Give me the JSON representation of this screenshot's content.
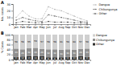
{
  "chart_data": [
    {
      "type": "line",
      "title": "A",
      "ylabel": "No. cases",
      "categories": [
        "Jan",
        "Feb",
        "Mar",
        "Apr",
        "May",
        "Jun",
        "Jul",
        "Aug",
        "Sep",
        "Oct",
        "Nov",
        "Dec"
      ],
      "series": [
        {
          "name": "Dengue",
          "color": "#aaaaaa",
          "line_style": "dashed",
          "marker": "square",
          "values": [
            10,
            20,
            12,
            8,
            8,
            26,
            22,
            20,
            16,
            12,
            8,
            5
          ]
        },
        {
          "name": "Chikungunya",
          "color": "#555555",
          "line_style": "dashed",
          "marker": "square",
          "values": [
            6,
            10,
            7,
            5,
            4,
            14,
            12,
            10,
            8,
            6,
            4,
            3
          ]
        },
        {
          "name": "Other",
          "color": "#000000",
          "line_style": "dotted",
          "marker": "square",
          "values": [
            2,
            4,
            3,
            2,
            2,
            4,
            3,
            3,
            3,
            2,
            2,
            1
          ]
        }
      ],
      "ylim": [
        0,
        30
      ],
      "yticks": [
        0,
        10,
        20,
        30
      ],
      "legend": "right"
    },
    {
      "type": "bar",
      "title": "B",
      "ylabel": "% Cases",
      "stacked": true,
      "data_labels": true,
      "categories": [
        "Jan",
        "Feb",
        "Mar",
        "Apr",
        "May",
        "Jun",
        "Jul",
        "Aug",
        "Sep",
        "Oct",
        "Nov",
        "Dec"
      ],
      "series": [
        {
          "name": "Other",
          "color": "#303030",
          "values": [
            11,
            12,
            13,
            14,
            14,
            9,
            9,
            9,
            11,
            10,
            14,
            11
          ]
        },
        {
          "name": "Chikungunya",
          "color": "#909090",
          "values": [
            33,
            29,
            32,
            33,
            29,
            32,
            32,
            30,
            30,
            30,
            29,
            33
          ]
        },
        {
          "name": "Dengue",
          "color": "#d0d0d0",
          "values": [
            56,
            59,
            55,
            53,
            57,
            59,
            59,
            61,
            59,
            60,
            57,
            56
          ]
        }
      ],
      "ylim": [
        0,
        100
      ],
      "yticks": [
        0,
        20,
        40,
        60,
        80,
        100
      ],
      "legend": "right"
    }
  ]
}
